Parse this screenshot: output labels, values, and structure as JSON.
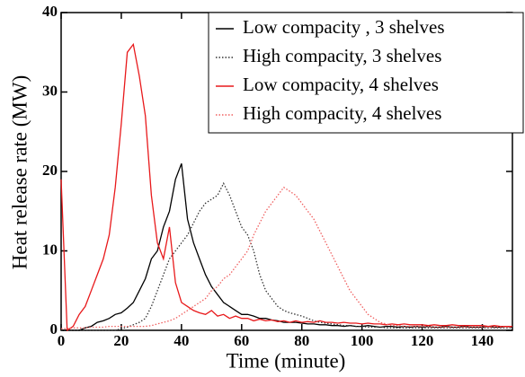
{
  "chart_data": {
    "type": "line",
    "xlabel": "Time (minute)",
    "ylabel": "Heat release rate (MW)",
    "x": [
      0,
      2,
      4,
      6,
      8,
      10,
      12,
      14,
      16,
      18,
      20,
      22,
      24,
      26,
      28,
      30,
      32,
      34,
      36,
      38,
      40,
      42,
      44,
      46,
      48,
      50,
      52,
      54,
      56,
      58,
      60,
      62,
      64,
      66,
      68,
      70,
      72,
      74,
      76,
      78,
      80,
      82,
      84,
      86,
      88,
      90,
      92,
      94,
      96,
      98,
      100,
      102,
      104,
      106,
      108,
      110,
      112,
      114,
      116,
      118,
      120,
      122,
      124,
      126,
      128,
      130,
      132,
      134,
      136,
      138,
      140,
      142,
      144,
      146,
      148,
      150
    ],
    "series": [
      {
        "name": "Low compacity , 3 shelves",
        "color": "#000000",
        "style": "solid",
        "values": [
          0,
          0,
          0,
          0,
          0.3,
          0.5,
          1,
          1.2,
          1.5,
          2,
          2.2,
          2.8,
          3.5,
          5,
          6.5,
          9,
          10,
          13,
          15,
          19,
          21,
          14,
          11,
          9,
          7,
          5.5,
          4.5,
          3.5,
          3,
          2.5,
          2,
          2,
          1.8,
          1.5,
          1.5,
          1.3,
          1.2,
          1,
          1,
          1,
          0.9,
          0.8,
          0.8,
          0.7,
          0.7,
          0.6,
          0.6,
          0.5,
          0.6,
          0.5,
          0.5,
          0.6,
          0.5,
          0.4,
          0.5,
          0.5,
          0.4,
          0.5,
          0.4,
          0.5,
          0.4,
          0.5,
          0.4,
          0.4,
          0.5,
          0.4,
          0.4,
          0.5,
          0.4,
          0.4,
          0.4,
          0.5,
          0.4,
          0.4,
          0.5,
          0.4
        ]
      },
      {
        "name": "High compacity, 3 shelves",
        "color": "#333333",
        "style": "dotted",
        "values": [
          0,
          0,
          0,
          0,
          0,
          0,
          0,
          0,
          0,
          0,
          0.2,
          0.4,
          0.7,
          1,
          1.5,
          3,
          5,
          7,
          9,
          10,
          11,
          12,
          13.5,
          15,
          16,
          16.5,
          17,
          18.5,
          17,
          15,
          13,
          12,
          10,
          7,
          5,
          4,
          3,
          2.5,
          2.2,
          2,
          1.8,
          1.5,
          1.2,
          1,
          0.9,
          0.8,
          0.7,
          0.6,
          0.6,
          0.5,
          0.5,
          0.4,
          0.4,
          0.4,
          0.3,
          0.3,
          0.3,
          0.3,
          0.3,
          0.3,
          0.3,
          0.3,
          0.3,
          0.3,
          0.3,
          0.3,
          0.3,
          0.3,
          0.3,
          0.3,
          0.3,
          0.3,
          0.3,
          0.3,
          0.3,
          0.3
        ]
      },
      {
        "name": "Low compacity, 4 shelves",
        "color": "#e8191b",
        "style": "solid",
        "values": [
          19,
          0,
          0.5,
          2,
          3,
          5,
          7,
          9,
          12,
          18,
          26,
          35,
          36,
          32,
          27,
          17,
          11,
          9,
          13,
          6,
          3.5,
          3,
          2.5,
          2.2,
          2,
          2.5,
          1.8,
          2,
          1.5,
          1.8,
          1.5,
          1.5,
          1.2,
          1.4,
          1.2,
          1.3,
          1.1,
          1.2,
          1,
          1.2,
          1,
          1.1,
          1,
          1.2,
          1,
          1,
          0.9,
          1,
          0.9,
          0.9,
          0.8,
          0.9,
          0.8,
          0.8,
          0.7,
          0.8,
          0.7,
          0.8,
          0.7,
          0.7,
          0.7,
          0.6,
          0.7,
          0.6,
          0.6,
          0.7,
          0.6,
          0.6,
          0.6,
          0.6,
          0.6,
          0.5,
          0.6,
          0.5,
          0.5,
          0.5
        ]
      },
      {
        "name": "High compacity, 4 shelves",
        "color": "#f06060",
        "style": "dotted",
        "values": [
          0.2,
          0.2,
          0.3,
          0.3,
          0.3,
          0.4,
          0.4,
          0.4,
          0.5,
          0.5,
          0.5,
          0.5,
          0.5,
          0.5,
          0.5,
          0.6,
          0.8,
          1,
          1.2,
          1.5,
          2,
          2.5,
          3,
          3.5,
          4,
          5,
          5.5,
          6.5,
          7,
          8,
          9,
          10,
          12,
          13.5,
          15,
          16,
          17,
          18,
          17.5,
          17,
          16,
          15,
          14,
          12.5,
          11,
          9.5,
          8,
          6.5,
          5,
          4,
          3,
          2,
          1.5,
          1,
          0.8,
          0.6,
          0.6,
          0.5,
          0.5,
          0.5,
          0.5,
          0.5,
          0.4,
          0.4,
          0.4,
          0.4,
          0.4,
          0.4,
          0.4,
          0.4,
          0.4,
          0.4,
          0.4,
          0.4,
          0.4,
          0.4
        ]
      }
    ],
    "xlim": [
      0,
      150
    ],
    "xticks": [
      0,
      20,
      40,
      60,
      80,
      100,
      120,
      140
    ],
    "ylim": [
      0,
      40
    ],
    "yticks": [
      0,
      10,
      20,
      30,
      40
    ],
    "legend": "upper right",
    "grid": false
  }
}
